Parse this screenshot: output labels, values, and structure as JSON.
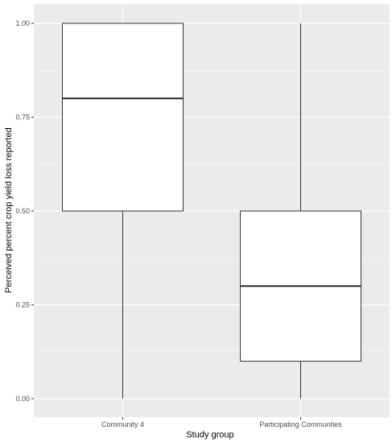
{
  "chart_data": {
    "type": "boxplot",
    "xlabel": "Study group",
    "ylabel": "Perceived percent crop yield loss reported",
    "ylim": [
      0,
      1
    ],
    "y_ticks": [
      "0.00",
      "0.25",
      "0.50",
      "0.75",
      "1.00"
    ],
    "grid": true,
    "categories": [
      "Community 4",
      "Participating Communties"
    ],
    "boxes": [
      {
        "category": "Community 4",
        "min": 0.0,
        "q1": 0.5,
        "median": 0.8,
        "q3": 1.0,
        "max": 1.0
      },
      {
        "category": "Participating Communties",
        "min": 0.0,
        "q1": 0.1,
        "median": 0.3,
        "q3": 0.5,
        "max": 1.0
      }
    ],
    "colors": {
      "panel": "#ebebeb",
      "grid": "#ffffff",
      "box_fill": "#ffffff",
      "box_stroke": "#333333"
    }
  }
}
